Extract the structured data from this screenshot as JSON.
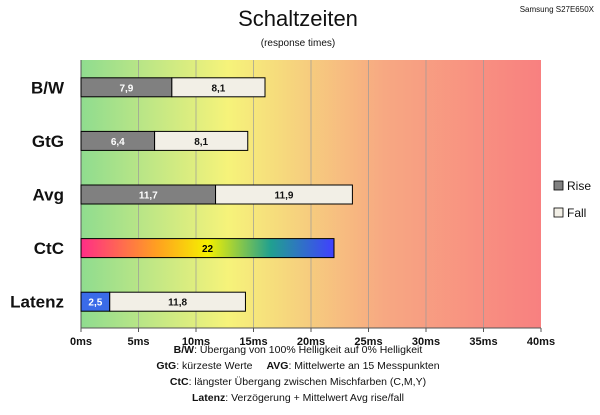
{
  "header": {
    "title": "Schaltzeiten",
    "subtitle": "(response times)",
    "model": "Samsung S27E650X"
  },
  "colors": {
    "rise": "#808080",
    "fall": "#f2efe6",
    "latency_rise": "#3a6be8",
    "bar_border": "#000000",
    "plot_gradient": [
      "#8fdc8f",
      "#f6f37a",
      "#f7a882",
      "#f88080"
    ],
    "ctc_gradient": [
      "#ff2d87",
      "#ffa020",
      "#f5f000",
      "#20a090",
      "#4040ff"
    ]
  },
  "legend": {
    "items": [
      {
        "label": "Rise",
        "color": "#808080"
      },
      {
        "label": "Fall",
        "color": "#f2efe6"
      }
    ]
  },
  "chart_data": {
    "type": "bar",
    "orientation": "horizontal",
    "stacked": true,
    "title": "Schaltzeiten",
    "subtitle": "(response times)",
    "categories": [
      "B/W",
      "GtG",
      "Avg",
      "CtC",
      "Latenz"
    ],
    "series": [
      {
        "name": "Rise",
        "values": [
          7.9,
          6.4,
          11.7,
          22,
          2.5
        ]
      },
      {
        "name": "Fall",
        "values": [
          8.1,
          8.1,
          11.9,
          null,
          11.8
        ]
      }
    ],
    "value_labels": [
      [
        "7,9",
        "8,1"
      ],
      [
        "6,4",
        "8,1"
      ],
      [
        "11,7",
        "11,9"
      ],
      [
        "22"
      ],
      [
        "2,5",
        "11,8"
      ]
    ],
    "xlim": [
      0,
      40
    ],
    "xticks": [
      0,
      5,
      10,
      15,
      20,
      25,
      30,
      35,
      40
    ],
    "xtick_labels": [
      "0ms",
      "5ms",
      "10ms",
      "15ms",
      "20ms",
      "25ms",
      "30ms",
      "35ms",
      "40ms"
    ],
    "grid": true,
    "legend_position": "right"
  },
  "footnotes": {
    "line1": {
      "key": "B/W",
      "text": ":  Übergang von 100% Helligkeit auf 0% Helligkeit"
    },
    "line2": {
      "key1": "GtG",
      "text1": ": kürzeste  Werte",
      "key2": "AVG",
      "text2": ": Mittelwerte  an 15 Messpunkten"
    },
    "line3": {
      "key": "CtC",
      "text": ": längster Übergang  zwischen Mischfarben  (C,M,Y)"
    },
    "line4": {
      "key": "Latenz",
      "text": ": Verzögerung  + Mittelwert  Avg rise/fall"
    }
  }
}
